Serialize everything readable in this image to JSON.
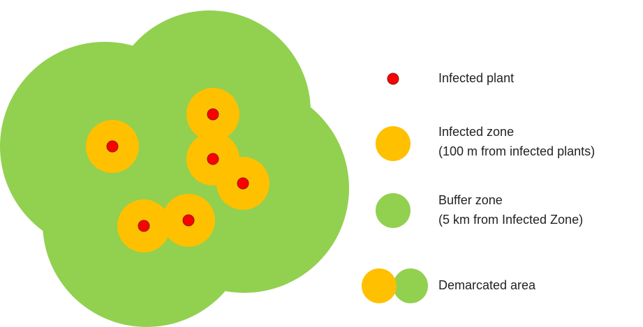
{
  "legend": [
    {
      "lines": [
        "Infected plant"
      ]
    },
    {
      "lines": [
        "Infected zone",
        "(100 m from infected plants)"
      ]
    },
    {
      "lines": [
        "Buffer zone",
        "(5 km from Infected Zone)"
      ]
    },
    {
      "lines": [
        "Demarcated area"
      ]
    }
  ]
}
